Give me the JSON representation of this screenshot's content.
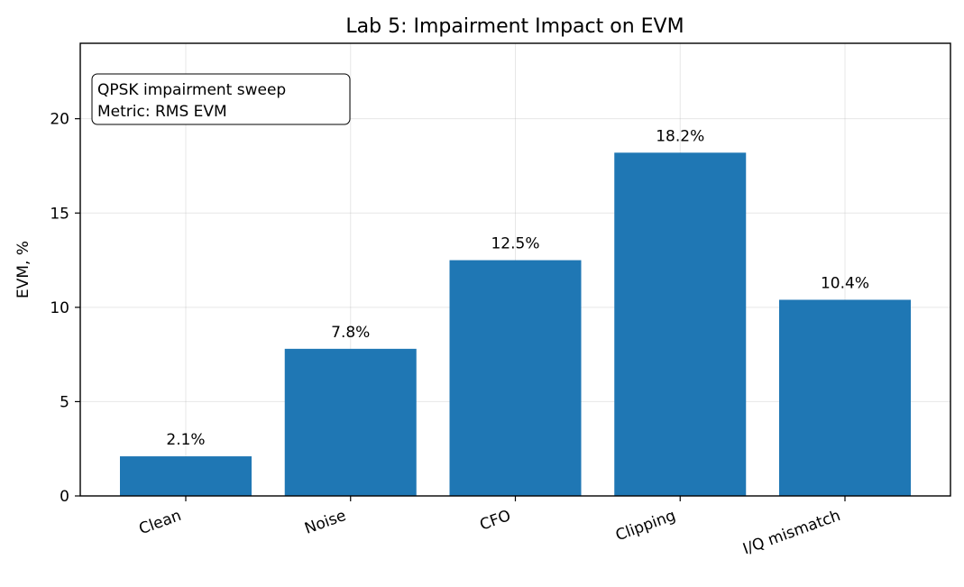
{
  "chart_data": {
    "type": "bar",
    "title": "Lab 5: Impairment Impact on EVM",
    "ylabel": "EVM, %",
    "xlabel": "",
    "categories": [
      "Clean",
      "Noise",
      "CFO",
      "Clipping",
      "I/Q mismatch"
    ],
    "values": [
      2.1,
      7.8,
      12.5,
      18.2,
      10.4
    ],
    "data_labels": [
      "2.1%",
      "7.8%",
      "12.5%",
      "18.2%",
      "10.4%"
    ],
    "ylim": [
      0,
      24
    ],
    "yticks": [
      0,
      5,
      10,
      15,
      20
    ],
    "grid": true,
    "bar_color": "#1f77b4",
    "annotation": {
      "lines": [
        "QPSK impairment sweep",
        "Metric: RMS EVM"
      ],
      "placement": "top-left"
    }
  }
}
